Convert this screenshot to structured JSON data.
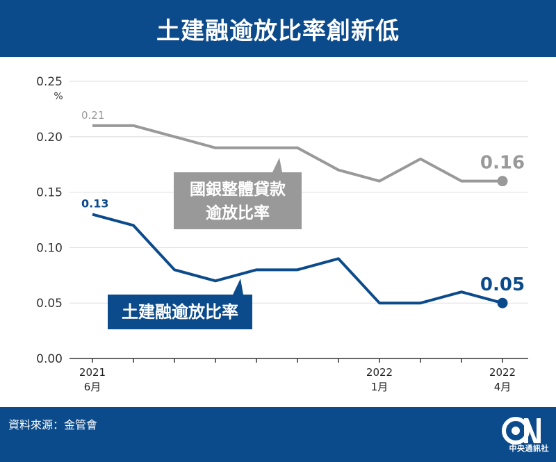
{
  "header": {
    "title": "土建融逾放比率創新低"
  },
  "footer": {
    "source": "資料來源：金管會",
    "logo_caption": "中央通訊社"
  },
  "colors": {
    "header_bg": "#0b4a8b",
    "gray_series": "#999999",
    "blue_series": "#0b4a8b",
    "grid": "#dddddd"
  },
  "icons": {
    "logo": "cna-logo-icon"
  },
  "chart_data": {
    "type": "line",
    "unit_label": "%",
    "ylim": [
      0,
      0.25
    ],
    "yticks": [
      "0.00",
      "0.05",
      "0.10",
      "0.15",
      "0.20",
      "0.25"
    ],
    "grid": true,
    "x_labels": [
      {
        "index": 0,
        "year": "2021",
        "month": "6月"
      },
      {
        "index": 7,
        "year": "2022",
        "month": "1月"
      },
      {
        "index": 10,
        "year": "2022",
        "month": "4月"
      }
    ],
    "series": [
      {
        "name": "國銀整體貸款逾放比率",
        "label_lines": [
          "國銀整體貸款",
          "逾放比率"
        ],
        "color": "#999999",
        "values": [
          0.21,
          0.21,
          0.2,
          0.19,
          0.19,
          0.19,
          0.17,
          0.16,
          0.18,
          0.16,
          0.16
        ],
        "start_label": "0.21",
        "end_label": "0.16"
      },
      {
        "name": "土建融逾放比率",
        "label_lines": [
          "土建融逾放比率"
        ],
        "color": "#0b4a8b",
        "values": [
          0.13,
          0.12,
          0.08,
          0.07,
          0.08,
          0.08,
          0.09,
          0.05,
          0.05,
          0.06,
          0.05
        ],
        "start_label": "0.13",
        "end_label": "0.05"
      }
    ]
  }
}
